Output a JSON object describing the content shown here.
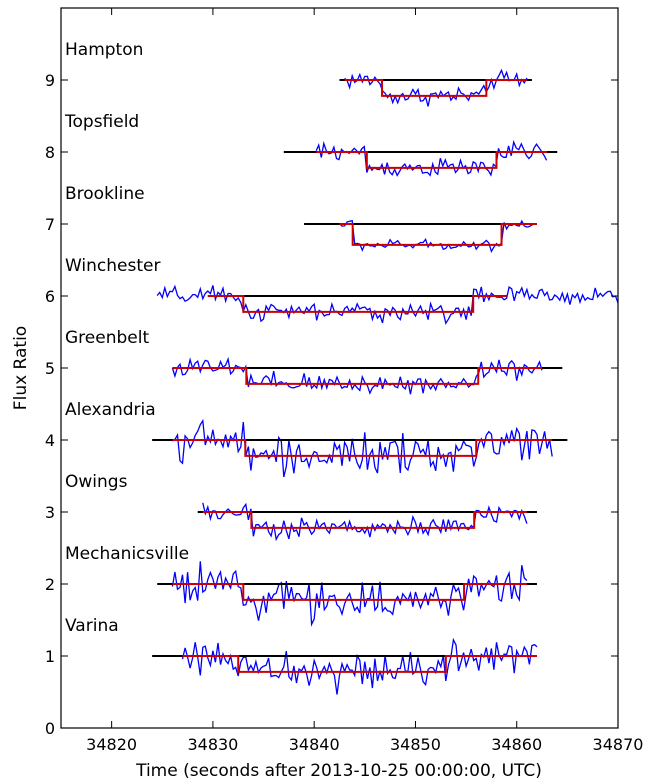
{
  "chart_data": {
    "type": "line",
    "xlabel": "Time (seconds after 2013-10-25 00:00:00, UTC)",
    "ylabel": "Flux Ratio",
    "xlim": [
      34815,
      34870
    ],
    "ylim": [
      0,
      10
    ],
    "xticks": [
      34820,
      34830,
      34840,
      34850,
      34860,
      34870
    ],
    "yticks": [
      0,
      1,
      2,
      3,
      4,
      5,
      6,
      7,
      8,
      9
    ],
    "grid": false,
    "colors": {
      "data": "#0000ff",
      "model": "#cc0000",
      "baseline": "#000000",
      "axes": "#000000"
    },
    "stations": [
      {
        "name": "Hampton",
        "offset": 9,
        "data_range": [
          34843.0,
          34861.0
        ],
        "baseline_range": [
          34842.5,
          34861.5
        ],
        "ingress": 34846.7,
        "egress": 34857.0,
        "depth": 0.22,
        "noise": 0.09
      },
      {
        "name": "Topsfield",
        "offset": 8,
        "data_range": [
          34840.2,
          34863.0
        ],
        "baseline_range": [
          34837.0,
          34864.0
        ],
        "ingress": 34845.2,
        "egress": 34858.0,
        "depth": 0.22,
        "noise": 0.09
      },
      {
        "name": "Brookline",
        "offset": 7,
        "data_range": [
          34842.5,
          34862.0
        ],
        "baseline_range": [
          34839.0,
          34862.0
        ],
        "ingress": 34843.8,
        "egress": 34858.5,
        "depth": 0.29,
        "noise": 0.05
      },
      {
        "name": "Winchester",
        "offset": 6,
        "data_range": [
          34824.5,
          34870.0
        ],
        "baseline_range": [
          34829.5,
          34859.0
        ],
        "ingress": 34833.0,
        "egress": 34855.7,
        "depth": 0.22,
        "noise": 0.09
      },
      {
        "name": "Greenbelt",
        "offset": 5,
        "data_range": [
          34826.0,
          34862.5
        ],
        "baseline_range": [
          34826.0,
          34864.5
        ],
        "ingress": 34833.3,
        "egress": 34856.2,
        "depth": 0.22,
        "noise": 0.1
      },
      {
        "name": "Alexandria",
        "offset": 4,
        "data_range": [
          34826.0,
          34863.5
        ],
        "baseline_range": [
          34824.0,
          34865.0
        ],
        "ingress": 34833.2,
        "egress": 34856.0,
        "depth": 0.22,
        "noise": 0.18
      },
      {
        "name": "Owings",
        "offset": 3,
        "data_range": [
          34829.0,
          34861.0
        ],
        "baseline_range": [
          34828.5,
          34862.0
        ],
        "ingress": 34833.8,
        "egress": 34855.8,
        "depth": 0.22,
        "noise": 0.1
      },
      {
        "name": "Mechanicsville",
        "offset": 2,
        "data_range": [
          34826.0,
          34861.0
        ],
        "baseline_range": [
          34824.5,
          34862.0
        ],
        "ingress": 34833.0,
        "egress": 34854.8,
        "depth": 0.22,
        "noise": 0.18
      },
      {
        "name": "Varina",
        "offset": 1,
        "data_range": [
          34827.0,
          34862.0
        ],
        "baseline_range": [
          34824.0,
          34862.0
        ],
        "ingress": 34832.5,
        "egress": 34853.0,
        "depth": 0.22,
        "noise": 0.17
      }
    ]
  }
}
